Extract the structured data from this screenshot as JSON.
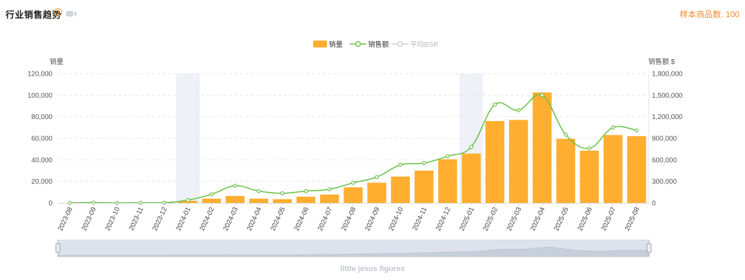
{
  "header": {
    "title": "行业销售趋势",
    "help_glyph": "?",
    "sample_label": "样本商品数:",
    "sample_value": "100"
  },
  "icons": {
    "help": "question-circle-icon",
    "video": "video-camera-icon"
  },
  "colors": {
    "bar": "#ffae2f",
    "line": "#6cc24a",
    "bsr": "#cccccc",
    "highlight": "#eef1f7",
    "accent": "#f28b2c"
  },
  "chart_data": {
    "type": "bar",
    "title": "行业销售趋势",
    "legend": [
      {
        "name": "销量",
        "kind": "bar",
        "active": true
      },
      {
        "name": "销售额",
        "kind": "line",
        "active": true
      },
      {
        "name": "平均BSR",
        "kind": "line",
        "active": false
      }
    ],
    "ylabel_left": "销量",
    "ylabel_right": "销售额 $",
    "ylim_left": [
      0,
      120000
    ],
    "ylim_right": [
      0,
      1800000
    ],
    "yticks_left": [
      "0",
      "20,000",
      "40,000",
      "60,000",
      "80,000",
      "100,000",
      "120,000"
    ],
    "yticks_right": [
      "0",
      "300,000",
      "600,000",
      "900,000",
      "1,200,000",
      "1,500,000",
      "1,800,000"
    ],
    "categories": [
      "2023-08",
      "2023-09",
      "2023-10",
      "2023-11",
      "2023-12",
      "2024-01",
      "2024-02",
      "2024-03",
      "2024-04",
      "2024-05",
      "2024-06",
      "2024-07",
      "2024-08",
      "2024-09",
      "2024-10",
      "2024-11",
      "2024-12",
      "2025-01",
      "2025-02",
      "2025-03",
      "2025-04",
      "2025-05",
      "2025-06",
      "2025-07",
      "2025-08"
    ],
    "highlighted_categories": [
      "2024-01",
      "2025-01"
    ],
    "series": [
      {
        "name": "销量",
        "type": "bar",
        "axis": "left",
        "values": [
          100,
          100,
          100,
          100,
          200,
          2000,
          4000,
          6500,
          4000,
          3500,
          5800,
          7800,
          14500,
          18800,
          24500,
          30000,
          40500,
          45800,
          76000,
          77000,
          102500,
          59500,
          48500,
          63000,
          62000
        ]
      },
      {
        "name": "销售额",
        "type": "line",
        "axis": "right",
        "values": [
          1000,
          6000,
          1000,
          2000,
          3000,
          40000,
          120000,
          240000,
          165000,
          135000,
          165000,
          190000,
          280000,
          360000,
          530000,
          555000,
          650000,
          780000,
          1370000,
          1290000,
          1500000,
          950000,
          760000,
          1050000,
          1010000
        ]
      }
    ],
    "zoom_label": "little jesus figures"
  }
}
